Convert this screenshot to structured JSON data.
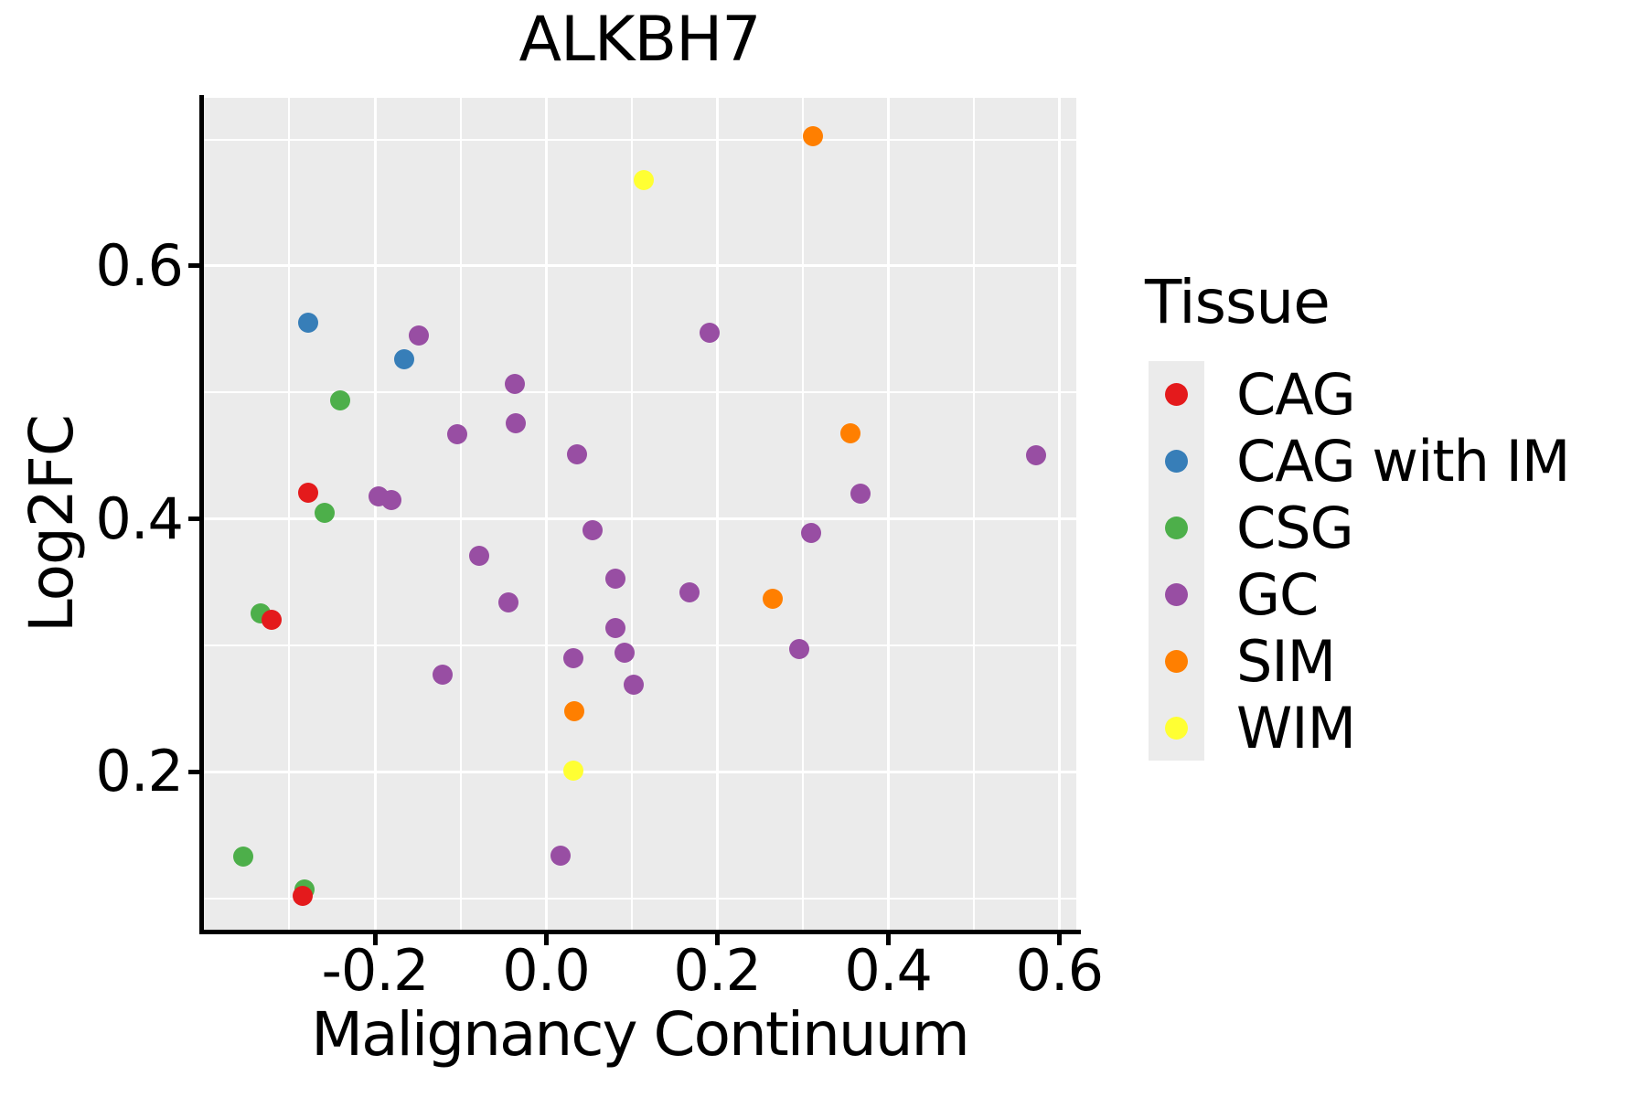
{
  "chart_data": {
    "type": "scatter",
    "title": "ALKBH7",
    "xlabel": "Malignancy Continuum",
    "ylabel": "Log2FC",
    "legend_title": "Tissue",
    "legend_position": "right",
    "grid": true,
    "panel_background": "#EBEBEB",
    "gridline_color": "#ffffff",
    "axis_color": "#000000",
    "x_range": [
      -0.401,
      0.62
    ],
    "y_range": [
      0.073,
      0.733
    ],
    "x_tick_values": [
      -0.2,
      0.0,
      0.2,
      0.4,
      0.6
    ],
    "x_tick_labels": [
      "-0.2",
      "0.0",
      "0.2",
      "0.4",
      "0.6"
    ],
    "x_minor_values": [
      -0.3,
      -0.1,
      0.1,
      0.3,
      0.5
    ],
    "y_tick_values": [
      0.2,
      0.4,
      0.6
    ],
    "y_tick_labels": [
      "0.2",
      "0.4",
      "0.6"
    ],
    "y_minor_values": [
      0.1,
      0.3,
      0.5,
      0.7
    ],
    "series": [
      {
        "name": "CAG",
        "color": "#E41A1C",
        "points": [
          [
            -0.278,
            0.421
          ],
          [
            -0.321,
            0.32
          ],
          [
            -0.284,
            0.102
          ]
        ]
      },
      {
        "name": "CAG with IM",
        "color": "#377EB8",
        "points": [
          [
            -0.278,
            0.555
          ],
          [
            -0.166,
            0.526
          ]
        ]
      },
      {
        "name": "CSG",
        "color": "#4DAF4A",
        "points": [
          [
            -0.241,
            0.494
          ],
          [
            -0.259,
            0.405
          ],
          [
            -0.334,
            0.325
          ],
          [
            -0.354,
            0.133
          ],
          [
            -0.282,
            0.107
          ]
        ]
      },
      {
        "name": "GC",
        "color": "#984EA3",
        "points": [
          [
            -0.149,
            0.545
          ],
          [
            0.191,
            0.547
          ],
          [
            -0.036,
            0.507
          ],
          [
            -0.035,
            0.476
          ],
          [
            -0.104,
            0.467
          ],
          [
            0.036,
            0.451
          ],
          [
            0.573,
            0.45
          ],
          [
            -0.196,
            0.418
          ],
          [
            -0.181,
            0.415
          ],
          [
            0.368,
            0.42
          ],
          [
            0.054,
            0.391
          ],
          [
            0.31,
            0.389
          ],
          [
            -0.078,
            0.371
          ],
          [
            0.081,
            0.353
          ],
          [
            0.168,
            0.342
          ],
          [
            -0.044,
            0.334
          ],
          [
            0.081,
            0.314
          ],
          [
            0.296,
            0.297
          ],
          [
            0.092,
            0.294
          ],
          [
            0.032,
            0.29
          ],
          [
            -0.121,
            0.277
          ],
          [
            0.103,
            0.269
          ],
          [
            0.017,
            0.134
          ]
        ]
      },
      {
        "name": "SIM",
        "color": "#FF7F00",
        "points": [
          [
            0.312,
            0.703
          ],
          [
            0.356,
            0.468
          ],
          [
            0.265,
            0.337
          ],
          [
            0.033,
            0.248
          ]
        ]
      },
      {
        "name": "WIM",
        "color": "#FFFF33",
        "points": [
          [
            0.114,
            0.668
          ],
          [
            0.032,
            0.201
          ]
        ]
      }
    ],
    "legend_entries": [
      {
        "label": "CAG",
        "color": "#E41A1C"
      },
      {
        "label": "CAG with IM",
        "color": "#377EB8"
      },
      {
        "label": "CSG",
        "color": "#4DAF4A"
      },
      {
        "label": "GC",
        "color": "#984EA3"
      },
      {
        "label": "SIM",
        "color": "#FF7F00"
      },
      {
        "label": "WIM",
        "color": "#FFFF33"
      }
    ]
  }
}
